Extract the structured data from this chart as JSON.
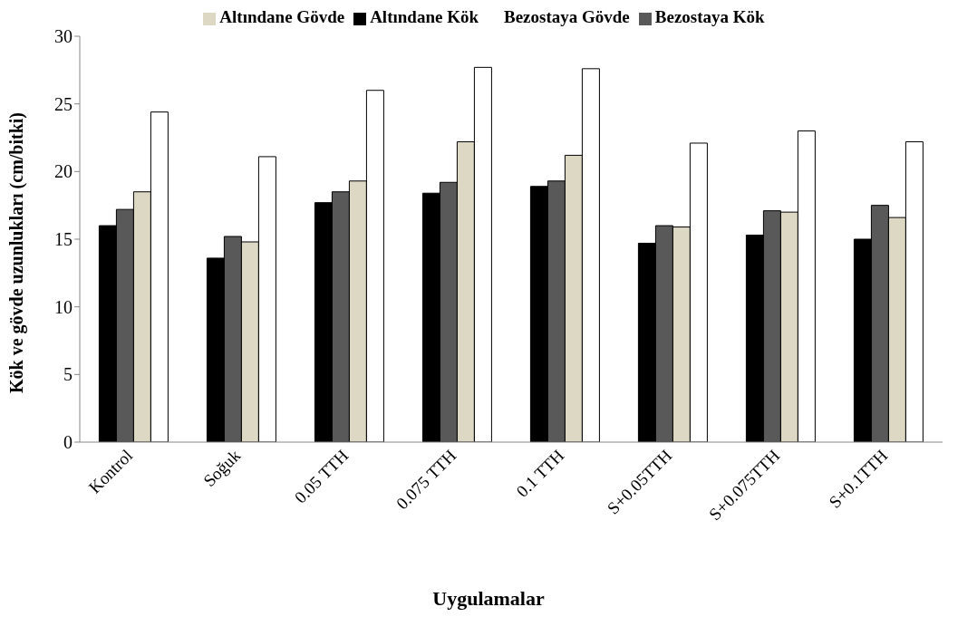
{
  "chart_data": {
    "type": "bar",
    "xlabel": "Uygulamalar",
    "ylabel": "Kök ve gövde uzunlukları (cm/bitki)",
    "categories": [
      "Kontrol",
      "Soğuk",
      "0.05 TTH",
      "0.075 TTH",
      "0.1 TTH",
      "S+0.05TTH",
      "S+0.075TTH",
      "S+0.1TTH"
    ],
    "series": [
      {
        "name": "Altındane Kök",
        "color": "#000000",
        "values": [
          16.0,
          13.6,
          17.7,
          18.4,
          18.9,
          14.7,
          15.3,
          15.0
        ]
      },
      {
        "name": "Bezostaya Kök",
        "color": "#595959",
        "values": [
          17.2,
          15.2,
          18.5,
          19.2,
          19.3,
          16.0,
          17.1,
          17.5
        ]
      },
      {
        "name": "Altındane Gövde",
        "color": "#ddd8c4",
        "values": [
          18.5,
          14.8,
          19.3,
          22.2,
          21.2,
          15.9,
          17.0,
          16.6
        ]
      },
      {
        "name": "Bezostaya Gövde",
        "color": "#ffffff",
        "values": [
          24.4,
          21.1,
          26.0,
          27.7,
          27.6,
          22.1,
          23.0,
          22.2
        ]
      }
    ],
    "ylim": [
      0,
      30
    ],
    "yticks": [
      0,
      5,
      10,
      15,
      20,
      25,
      30
    ],
    "grid": false,
    "legend": "top"
  }
}
